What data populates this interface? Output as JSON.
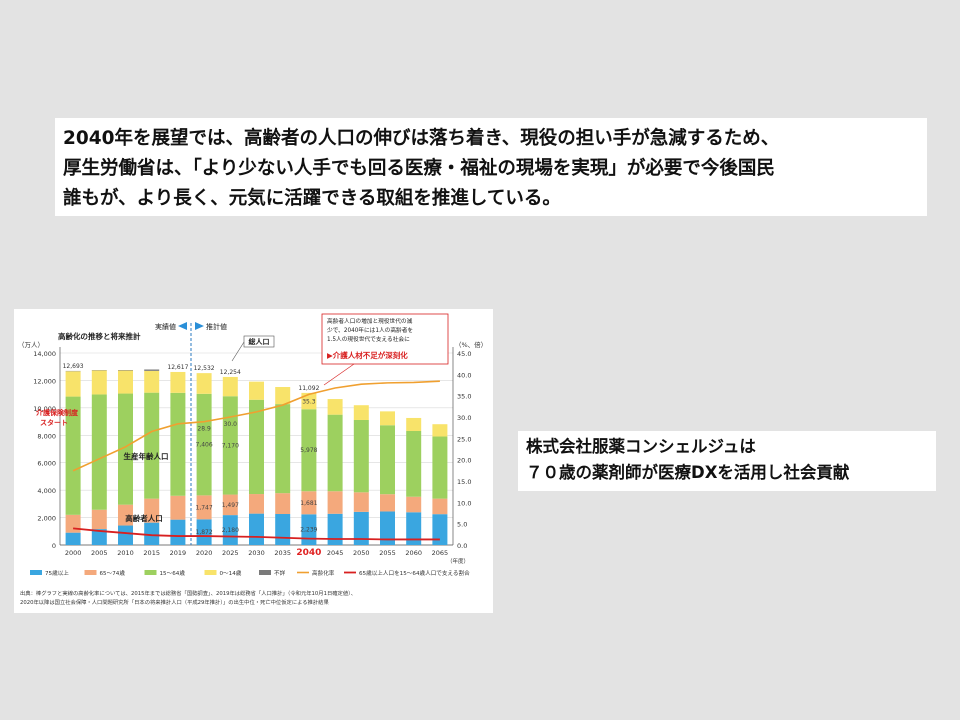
{
  "headline": {
    "lines": [
      "2040年を展望では、高齢者の人口の伸びは落ち着き、現役の担い手が急減するため、",
      "厚生労働省は、「より少ない人手でも回る医療・福祉の現場を実現」が必要で今後国民",
      "誰もが、より長く、元気に活躍できる取組を推進している。"
    ]
  },
  "company_note": {
    "lines": [
      "株式会社服薬コンシェルジュは",
      "７０歳の薬剤師が医療DXを活用し社会貢献"
    ]
  },
  "chart_data": {
    "type": "bar",
    "title": "高齢化の推移と将来推計",
    "left_axis_unit": "（万人）",
    "right_axis_unit": "（%、倍）",
    "x_unit": "（年度）",
    "ylim": [
      0,
      14000
    ],
    "y2lim": [
      0,
      45
    ],
    "yticks": [
      "0",
      "2,000",
      "4,000",
      "6,000",
      "8,000",
      "10,000",
      "12,000",
      "14,000"
    ],
    "y2ticks": [
      "0.0",
      "5.0",
      "10.0",
      "15.0",
      "20.0",
      "25.0",
      "30.0",
      "35.0",
      "40.0",
      "45.0"
    ],
    "categories": [
      "2000",
      "2005",
      "2010",
      "2015",
      "2019",
      "2020",
      "2025",
      "2030",
      "2035",
      "2040",
      "2045",
      "2050",
      "2055",
      "2060",
      "2065"
    ],
    "highlight_category": "2040",
    "actual_label": "実績値",
    "projection_label": "推計値",
    "series": [
      {
        "name": "75歳以上",
        "color": "#3aa6e0",
        "values": [
          900,
          1160,
          1420,
          1630,
          1849,
          1872,
          2180,
          2288,
          2260,
          2239,
          2277,
          2417,
          2446,
          2387,
          2248
        ]
      },
      {
        "name": "65～74歳",
        "color": "#f4a97c",
        "values": [
          1300,
          1410,
          1520,
          1750,
          1740,
          1747,
          1497,
          1428,
          1520,
          1681,
          1643,
          1424,
          1258,
          1133,
          1133
        ]
      },
      {
        "name": "15～64歳",
        "color": "#9dd05f",
        "values": [
          8622,
          8409,
          8103,
          7728,
          7507,
          7406,
          7170,
          6875,
          6494,
          5978,
          5584,
          5275,
          5028,
          4793,
          4529
        ]
      },
      {
        "name": "0～14歳",
        "color": "#f8e36a",
        "values": [
          1847,
          1752,
          1680,
          1589,
          1521,
          1507,
          1407,
          1321,
          1246,
          1194,
          1138,
          1077,
          1012,
          951,
          898
        ]
      },
      {
        "name": "不詳",
        "color": "#7a7a7a",
        "values": [
          24,
          26,
          34,
          100,
          0,
          0,
          0,
          0,
          0,
          0,
          0,
          0,
          0,
          0,
          0
        ]
      }
    ],
    "totals": [
      "12,693",
      "",
      "",
      "",
      "12,617",
      "12,532",
      "12,254",
      "",
      "",
      "11,092",
      "",
      "",
      "",
      "",
      ""
    ],
    "aging_rate": {
      "name": "高齢化率",
      "color": "#f0a030",
      "values": [
        17.4,
        20.2,
        23.0,
        26.6,
        28.4,
        28.9,
        30.0,
        31.2,
        32.8,
        35.3,
        36.8,
        37.7,
        38.0,
        38.1,
        38.4
      ]
    },
    "support_ratio": {
      "name": "65歳以上人口を15～64歳人口で支える割合",
      "color": "#d82020",
      "values": [
        3.9,
        3.3,
        2.8,
        2.3,
        2.1,
        2.1,
        2.0,
        1.9,
        1.7,
        1.5,
        1.4,
        1.4,
        1.3,
        1.3,
        1.3
      ]
    },
    "value_labels": [
      {
        "index": 5,
        "series": 2,
        "text": "7,406"
      },
      {
        "index": 6,
        "series": 2,
        "text": "7,170"
      },
      {
        "index": 9,
        "series": 2,
        "text": "5,978"
      },
      {
        "index": 5,
        "series": 1,
        "text": "1,747"
      },
      {
        "index": 6,
        "series": 1,
        "text": "1,497"
      },
      {
        "index": 9,
        "series": 1,
        "text": "1,681"
      },
      {
        "index": 5,
        "series": 0,
        "text": "1,872"
      },
      {
        "index": 6,
        "series": 0,
        "text": "2,180"
      },
      {
        "index": 9,
        "series": 0,
        "text": "2,239"
      }
    ],
    "rate_labels": [
      {
        "index": 5,
        "text": "28.9"
      },
      {
        "index": 6,
        "text": "30.0"
      },
      {
        "index": 9,
        "text": "35.3"
      }
    ],
    "annotations": {
      "total_population": "総人口",
      "working_age": "生産年齢人口",
      "elderly": "高齢者人口",
      "insurance_line1": "介護保険制度",
      "insurance_line2": "スタート",
      "callout_lines": [
        "高齢者人口の増加と現役世代の減",
        "少で、2040年には1人の高齢者を",
        "1.5人の現役世代で支える社会に"
      ],
      "callout_emphasis": "▶介護人材不足が深刻化"
    },
    "legend_position": "bottom",
    "source_lines": [
      "出典：棒グラフと実線の高齢化率については、2015年までは総務省「国勢調査」、2019年は総務省「人口推計」（令和元年10月1日確定値）、",
      "2020年以降は国立社会保障・人口問題研究所「日本の将来推計人口（平成29年推計）」の出生中位・死亡中位仮定による推計結果"
    ]
  }
}
